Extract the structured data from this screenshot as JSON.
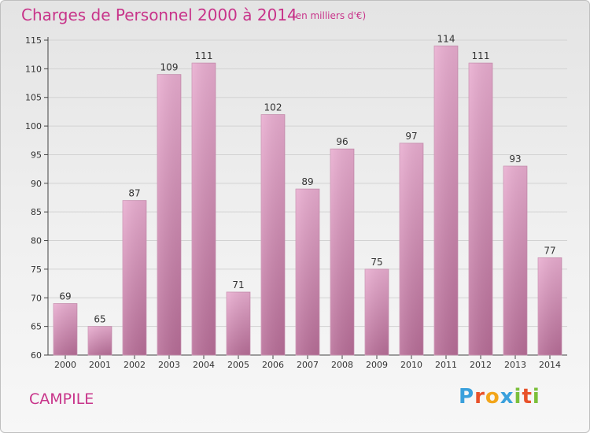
{
  "header": {
    "title": "Charges de Personnel 2000 à 2014",
    "unit": "(en milliers d'€)"
  },
  "footer": {
    "commune": "CAMPILE",
    "logo_letters": [
      "P",
      "r",
      "o",
      "x",
      "i",
      "t",
      "i"
    ],
    "logo_colors": [
      "#3aa0dc",
      "#e8512a",
      "#f2a51a",
      "#3aa0dc",
      "#7bbf3a",
      "#e8512a",
      "#7bbf3a"
    ]
  },
  "chart_data": {
    "type": "bar",
    "title": "Charges de Personnel 2000 à 2014",
    "subtitle": "(en milliers d'€)",
    "categories": [
      "2000",
      "2001",
      "2002",
      "2003",
      "2004",
      "2005",
      "2006",
      "2007",
      "2008",
      "2009",
      "2010",
      "2011",
      "2012",
      "2013",
      "2014"
    ],
    "values": [
      69,
      65,
      87,
      109,
      111,
      71,
      102,
      89,
      96,
      75,
      97,
      114,
      111,
      93,
      77
    ],
    "ylim": [
      60,
      115
    ],
    "yticks": [
      60,
      65,
      70,
      75,
      80,
      85,
      90,
      95,
      100,
      105,
      110,
      115
    ],
    "grid": true,
    "bar_color": "#d98ab6"
  }
}
